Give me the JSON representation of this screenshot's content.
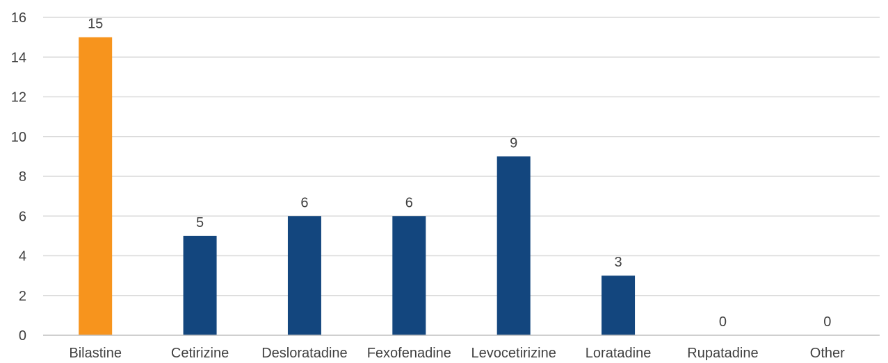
{
  "chart_data": {
    "type": "bar",
    "title": "",
    "xlabel": "",
    "ylabel": "",
    "ylim": [
      0,
      16
    ],
    "yticks": [
      0,
      2,
      4,
      6,
      8,
      10,
      12,
      14,
      16
    ],
    "grid": true,
    "legend": "none",
    "categories": [
      "Bilastine",
      "Cetirizine",
      "Desloratadine",
      "Fexofenadine",
      "Levocetirizine",
      "Loratadine",
      "Rupatadine",
      "Other"
    ],
    "values": [
      15,
      5,
      6,
      6,
      9,
      3,
      0,
      0
    ],
    "data_labels": [
      "15",
      "5",
      "6",
      "6",
      "9",
      "3",
      "0",
      "0"
    ],
    "colors": {
      "highlight": "#f7941d",
      "default": "#13467e"
    },
    "highlight_index": 0
  }
}
